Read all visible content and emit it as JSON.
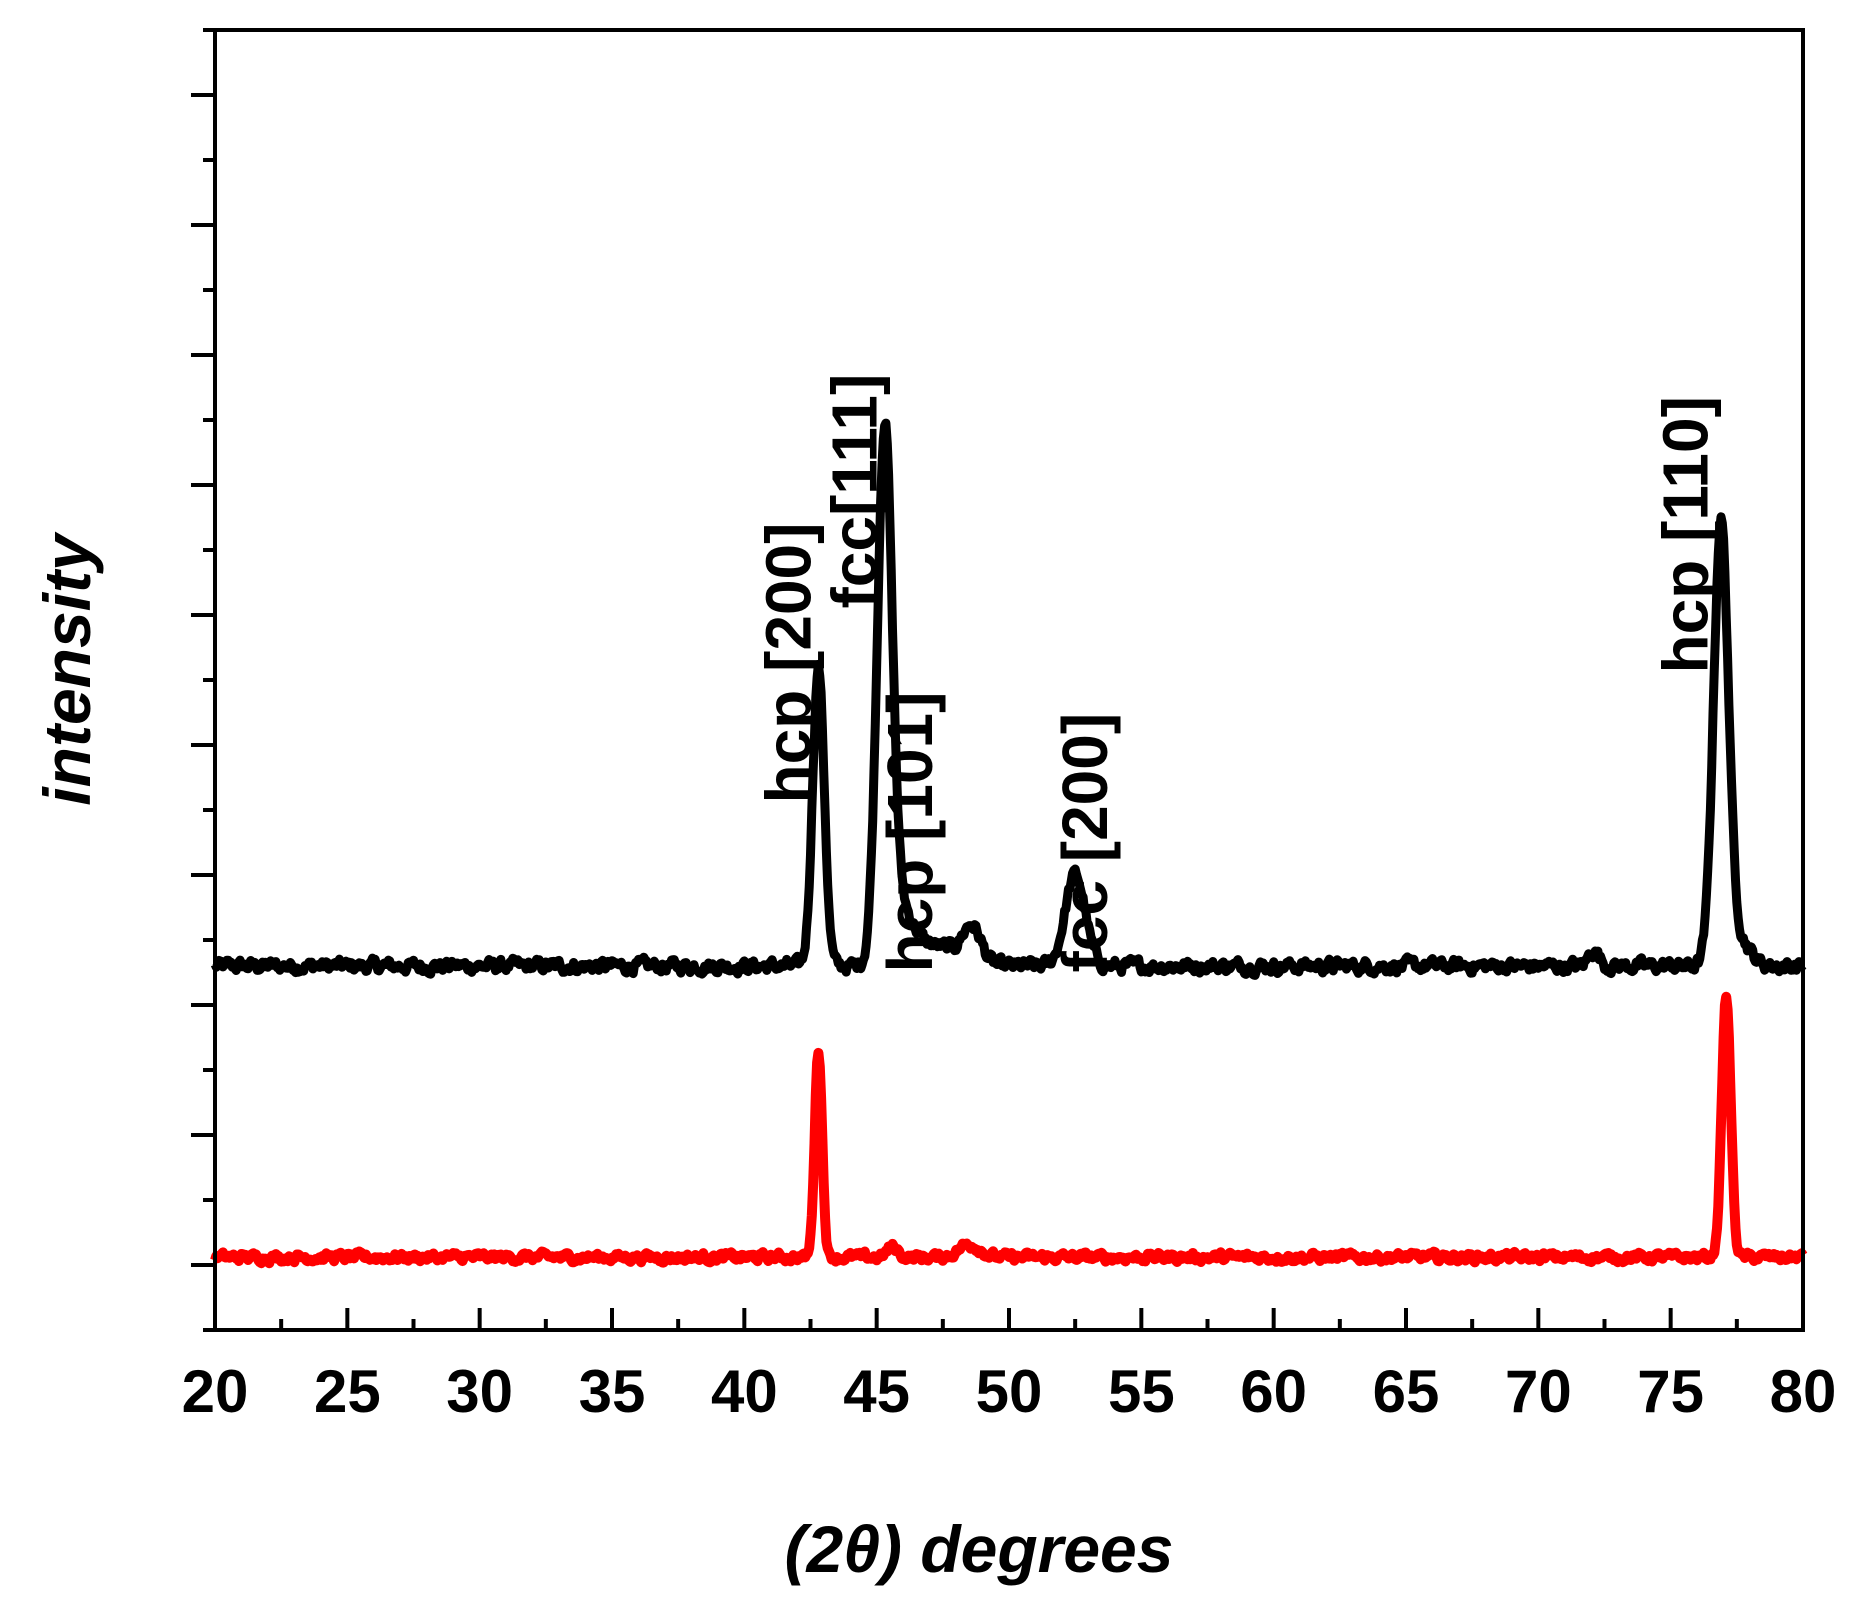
{
  "chart_data": {
    "type": "line",
    "xlabel": "(2θ) degrees",
    "ylabel": "intensity",
    "xlim": [
      20,
      80
    ],
    "ylim": [
      0,
      100
    ],
    "x_ticks": [
      20,
      25,
      30,
      35,
      40,
      45,
      50,
      55,
      60,
      65,
      70,
      75,
      80
    ],
    "y_tick_labels": "none",
    "grid": false,
    "legend": "none",
    "series": [
      {
        "color": "#000000",
        "baseline": 28.0,
        "noise": 0.9,
        "peaks": [
          {
            "x": 42.8,
            "height": 23,
            "width": 0.22
          },
          {
            "x": 45.3,
            "height": 40,
            "width": 0.28
          },
          {
            "x": 45.9,
            "height": 4,
            "width": 0.5
          },
          {
            "x": 47.3,
            "height": 1.5,
            "width": 0.8
          },
          {
            "x": 48.6,
            "height": 2.8,
            "width": 0.35
          },
          {
            "x": 52.5,
            "height": 7,
            "width": 0.38
          },
          {
            "x": 72.1,
            "height": 1.2,
            "width": 0.2
          },
          {
            "x": 76.9,
            "height": 34,
            "width": 0.28
          },
          {
            "x": 77.6,
            "height": 2,
            "width": 0.4
          }
        ]
      },
      {
        "color": "#ff0000",
        "baseline": 5.6,
        "noise": 0.6,
        "peaks": [
          {
            "x": 42.8,
            "height": 16,
            "width": 0.14
          },
          {
            "x": 45.6,
            "height": 0.8,
            "width": 0.2
          },
          {
            "x": 48.5,
            "height": 1.0,
            "width": 0.4
          },
          {
            "x": 77.1,
            "height": 20,
            "width": 0.17
          }
        ]
      }
    ],
    "annotations": [
      {
        "text": "hcp [200]",
        "x": 42.5,
        "y": 40.5
      },
      {
        "text": "fcc[111]",
        "x": 45.0,
        "y": 55.5
      },
      {
        "text": "hcp [101]",
        "x": 47.1,
        "y": 27.5
      },
      {
        "text": "fcc [200]",
        "x": 53.7,
        "y": 27.5
      },
      {
        "text": "hcp [110]",
        "x": 76.4,
        "y": 50.5
      }
    ]
  }
}
